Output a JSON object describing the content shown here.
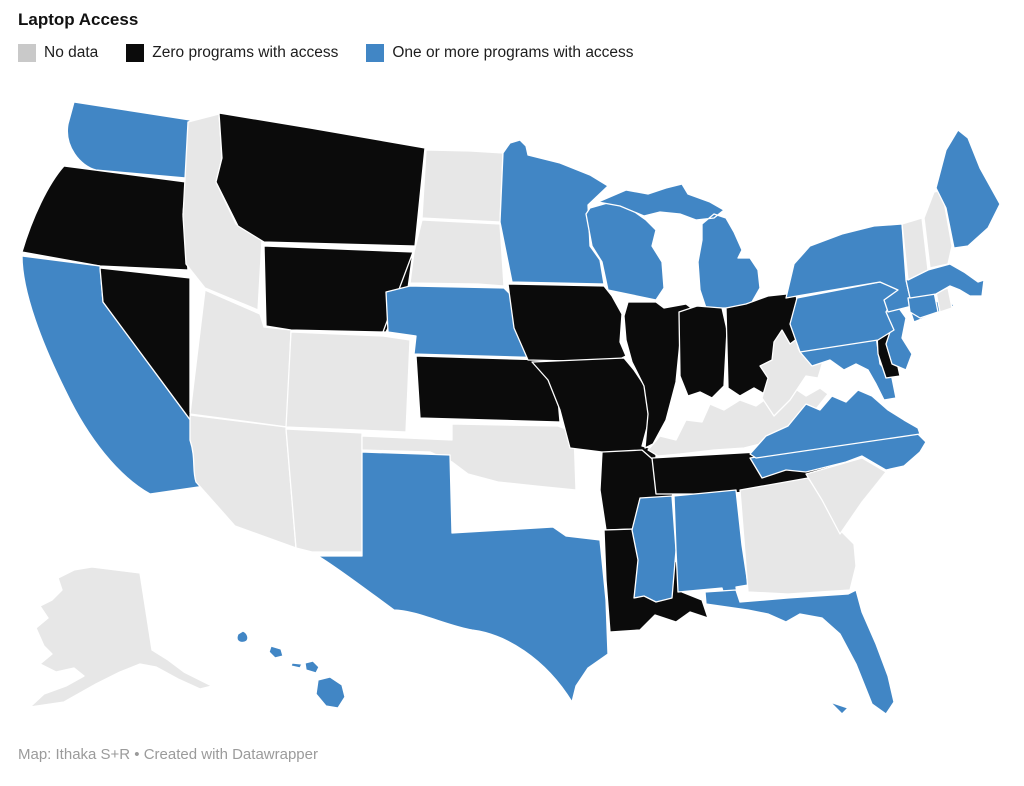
{
  "header": {
    "title": "Laptop Access"
  },
  "footer": {
    "attribution": "Map: Ithaka S+R • Created with Datawrapper"
  },
  "chart_data": {
    "type": "choropleth-map",
    "region": "United States (Albers projection, AK + HI insets)",
    "title": "Laptop Access",
    "legend_position": "top",
    "categories": [
      {
        "name": "No data",
        "map_color": "#e7e7e7",
        "legend_color": "#c9c9c9"
      },
      {
        "name": "Zero programs with access",
        "map_color": "#0b0b0b",
        "legend_color": "#0b0b0b"
      },
      {
        "name": "One or more programs with access",
        "map_color": "#4186c5",
        "legend_color": "#4186c5"
      }
    ],
    "states": [
      {
        "code": "WA",
        "name": "Washington",
        "category": "One or more programs with access"
      },
      {
        "code": "OR",
        "name": "Oregon",
        "category": "Zero programs with access"
      },
      {
        "code": "CA",
        "name": "California",
        "category": "One or more programs with access"
      },
      {
        "code": "NV",
        "name": "Nevada",
        "category": "Zero programs with access"
      },
      {
        "code": "ID",
        "name": "Idaho",
        "category": "No data"
      },
      {
        "code": "MT",
        "name": "Montana",
        "category": "Zero programs with access"
      },
      {
        "code": "WY",
        "name": "Wyoming",
        "category": "Zero programs with access"
      },
      {
        "code": "UT",
        "name": "Utah",
        "category": "No data"
      },
      {
        "code": "CO",
        "name": "Colorado",
        "category": "No data"
      },
      {
        "code": "AZ",
        "name": "Arizona",
        "category": "No data"
      },
      {
        "code": "NM",
        "name": "New Mexico",
        "category": "No data"
      },
      {
        "code": "ND",
        "name": "North Dakota",
        "category": "No data"
      },
      {
        "code": "SD",
        "name": "South Dakota",
        "category": "No data"
      },
      {
        "code": "NE",
        "name": "Nebraska",
        "category": "One or more programs with access"
      },
      {
        "code": "KS",
        "name": "Kansas",
        "category": "Zero programs with access"
      },
      {
        "code": "OK",
        "name": "Oklahoma",
        "category": "No data"
      },
      {
        "code": "TX",
        "name": "Texas",
        "category": "One or more programs with access"
      },
      {
        "code": "MN",
        "name": "Minnesota",
        "category": "One or more programs with access"
      },
      {
        "code": "IA",
        "name": "Iowa",
        "category": "Zero programs with access"
      },
      {
        "code": "MO",
        "name": "Missouri",
        "category": "Zero programs with access"
      },
      {
        "code": "AR",
        "name": "Arkansas",
        "category": "Zero programs with access"
      },
      {
        "code": "LA",
        "name": "Louisiana",
        "category": "Zero programs with access"
      },
      {
        "code": "WI",
        "name": "Wisconsin",
        "category": "One or more programs with access"
      },
      {
        "code": "IL",
        "name": "Illinois",
        "category": "Zero programs with access"
      },
      {
        "code": "MI",
        "name": "Michigan",
        "category": "One or more programs with access"
      },
      {
        "code": "IN",
        "name": "Indiana",
        "category": "Zero programs with access"
      },
      {
        "code": "OH",
        "name": "Ohio",
        "category": "Zero programs with access"
      },
      {
        "code": "KY",
        "name": "Kentucky",
        "category": "No data"
      },
      {
        "code": "TN",
        "name": "Tennessee",
        "category": "Zero programs with access"
      },
      {
        "code": "MS",
        "name": "Mississippi",
        "category": "One or more programs with access"
      },
      {
        "code": "AL",
        "name": "Alabama",
        "category": "One or more programs with access"
      },
      {
        "code": "GA",
        "name": "Georgia",
        "category": "No data"
      },
      {
        "code": "FL",
        "name": "Florida",
        "category": "One or more programs with access"
      },
      {
        "code": "SC",
        "name": "South Carolina",
        "category": "No data"
      },
      {
        "code": "NC",
        "name": "North Carolina",
        "category": "One or more programs with access"
      },
      {
        "code": "VA",
        "name": "Virginia",
        "category": "One or more programs with access"
      },
      {
        "code": "WV",
        "name": "West Virginia",
        "category": "No data"
      },
      {
        "code": "MD",
        "name": "Maryland",
        "category": "One or more programs with access"
      },
      {
        "code": "DE",
        "name": "Delaware",
        "category": "Zero programs with access"
      },
      {
        "code": "NJ",
        "name": "New Jersey",
        "category": "One or more programs with access"
      },
      {
        "code": "PA",
        "name": "Pennsylvania",
        "category": "One or more programs with access"
      },
      {
        "code": "NY",
        "name": "New York",
        "category": "One or more programs with access"
      },
      {
        "code": "CT",
        "name": "Connecticut",
        "category": "One or more programs with access"
      },
      {
        "code": "RI",
        "name": "Rhode Island",
        "category": "No data"
      },
      {
        "code": "MA",
        "name": "Massachusetts",
        "category": "One or more programs with access"
      },
      {
        "code": "VT",
        "name": "Vermont",
        "category": "No data"
      },
      {
        "code": "NH",
        "name": "New Hampshire",
        "category": "No data"
      },
      {
        "code": "ME",
        "name": "Maine",
        "category": "One or more programs with access"
      },
      {
        "code": "AK",
        "name": "Alaska",
        "category": "No data"
      },
      {
        "code": "HI",
        "name": "Hawaii",
        "category": "One or more programs with access"
      }
    ]
  }
}
